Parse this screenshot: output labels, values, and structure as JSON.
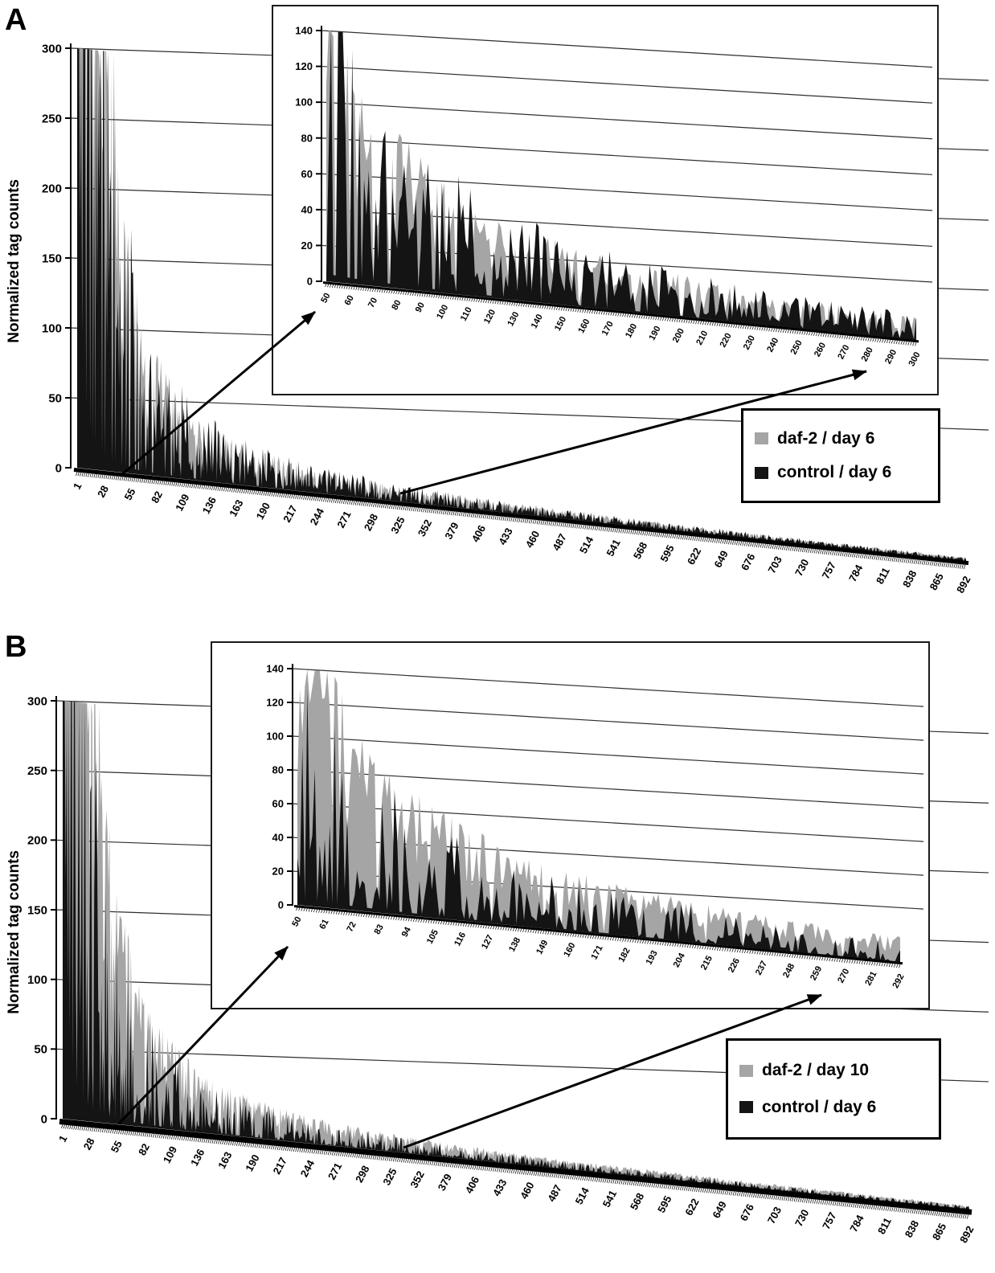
{
  "figure": {
    "background": "#ffffff"
  },
  "panels": [
    {
      "label": "A",
      "ylabel": "Normalized tag counts",
      "legend": [
        {
          "label": "daf-2 / day 6",
          "color": "#a5a5a5"
        },
        {
          "label": "control / day 6",
          "color": "#141414"
        }
      ]
    },
    {
      "label": "B",
      "ylabel": "Normalized tag counts",
      "legend": [
        {
          "label": "daf-2 / day 10",
          "color": "#a5a5a5"
        },
        {
          "label": "control / day 6",
          "color": "#141414"
        }
      ]
    }
  ],
  "chart_data": [
    {
      "panel": "A",
      "type": "area",
      "title": "",
      "xlabel": "",
      "ylabel": "Normalized tag counts",
      "ylim": [
        0,
        300
      ],
      "y_ticks": [
        0,
        50,
        100,
        150,
        200,
        250,
        300
      ],
      "x_ticks": [
        1,
        28,
        55,
        82,
        109,
        136,
        163,
        190,
        217,
        244,
        271,
        298,
        325,
        352,
        379,
        406,
        433,
        460,
        487,
        514,
        541,
        568,
        595,
        622,
        649,
        676,
        703,
        730,
        757,
        784,
        811,
        838,
        865,
        892
      ],
      "n_points": 892,
      "grid": true,
      "legend_position": "right-middle",
      "series": [
        {
          "name": "daf-2 / day 6",
          "color": "#a5a5a5"
        },
        {
          "name": "control / day 6",
          "color": "#141414"
        }
      ],
      "envelope": {
        "model": "power_law_rank_decay",
        "value_at_rank_50": 140,
        "exponent": -1.47,
        "samples": {
          "1": 300,
          "28": 300,
          "50": 140,
          "100": 51,
          "200": 18,
          "300": 10,
          "500": 5,
          "892": 2
        }
      },
      "inset": {
        "ylim": [
          0,
          140
        ],
        "y_ticks": [
          0,
          20,
          40,
          60,
          80,
          100,
          120,
          140
        ],
        "x_range": [
          50,
          300
        ],
        "x_ticks": [
          50,
          60,
          70,
          80,
          90,
          100,
          110,
          120,
          130,
          140,
          150,
          160,
          170,
          180,
          190,
          200,
          210,
          220,
          230,
          240,
          250,
          260,
          270,
          280,
          290,
          300
        ]
      }
    },
    {
      "panel": "B",
      "type": "area",
      "title": "",
      "xlabel": "",
      "ylabel": "Normalized tag counts",
      "ylim": [
        0,
        300
      ],
      "y_ticks": [
        0,
        50,
        100,
        150,
        200,
        250,
        300
      ],
      "x_ticks": [
        1,
        28,
        55,
        82,
        109,
        136,
        163,
        190,
        217,
        244,
        271,
        298,
        325,
        352,
        379,
        406,
        433,
        460,
        487,
        514,
        541,
        568,
        595,
        622,
        649,
        676,
        703,
        730,
        757,
        784,
        811,
        838,
        865,
        892
      ],
      "n_points": 892,
      "grid": true,
      "legend_position": "right-middle",
      "series": [
        {
          "name": "daf-2 / day 10",
          "color": "#a5a5a5"
        },
        {
          "name": "control / day 6",
          "color": "#141414"
        }
      ],
      "envelope": {
        "model": "power_law_rank_decay",
        "value_at_rank_50": 140,
        "exponent": -1.47,
        "samples": {
          "1": 300,
          "28": 300,
          "50": 140,
          "100": 51,
          "200": 18,
          "300": 10,
          "500": 5,
          "892": 2
        }
      },
      "inset": {
        "ylim": [
          0,
          140
        ],
        "y_ticks": [
          0,
          20,
          40,
          60,
          80,
          100,
          120,
          140
        ],
        "x_range": [
          50,
          292
        ],
        "x_ticks": [
          50,
          61,
          72,
          83,
          94,
          105,
          116,
          127,
          138,
          149,
          160,
          171,
          182,
          193,
          204,
          215,
          226,
          237,
          248,
          259,
          270,
          281,
          292
        ]
      }
    }
  ]
}
